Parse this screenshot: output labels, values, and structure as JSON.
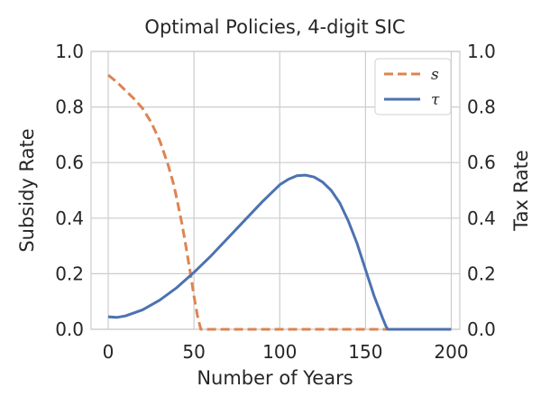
{
  "chart_data": {
    "type": "line",
    "title": "Optimal Policies, 4-digit SIC",
    "xlabel": "Number of Years",
    "ylabel_left": "Subsidy Rate",
    "ylabel_right": "Tax Rate",
    "xlim": [
      -10,
      205
    ],
    "ylim_left": [
      0,
      1
    ],
    "ylim_right": [
      0,
      1
    ],
    "x_ticks": [
      0,
      50,
      100,
      150,
      200
    ],
    "x_tick_labels": [
      "0",
      "50",
      "100",
      "150",
      "200"
    ],
    "y_ticks": [
      0,
      0.2,
      0.4,
      0.6,
      0.8,
      1.0
    ],
    "y_tick_labels_left": [
      "0.0",
      "0.2",
      "0.4",
      "0.6",
      "0.8",
      "1.0"
    ],
    "y_tick_labels_right": [
      "0.0",
      "0.2",
      "0.4",
      "0.6",
      "0.8",
      "1.0"
    ],
    "grid": true,
    "legend_position": "top-right",
    "series": [
      {
        "name": "s",
        "axis": "left",
        "style": "dashed",
        "color": "#dd8452",
        "x": [
          0,
          5,
          10,
          15,
          20,
          25,
          30,
          35,
          38,
          40,
          43,
          45,
          48,
          50,
          52,
          54,
          60,
          80,
          100,
          120,
          140,
          160,
          180,
          200
        ],
        "y": [
          0.915,
          0.89,
          0.86,
          0.83,
          0.795,
          0.745,
          0.68,
          0.59,
          0.525,
          0.47,
          0.38,
          0.31,
          0.2,
          0.12,
          0.05,
          0.0,
          0.0,
          0.0,
          0.0,
          0.0,
          0.0,
          0.0,
          0.0,
          0.0
        ]
      },
      {
        "name": "τ",
        "axis": "right",
        "style": "solid",
        "color": "#4c72b0",
        "x": [
          0,
          5,
          10,
          20,
          30,
          40,
          50,
          60,
          70,
          80,
          90,
          100,
          105,
          110,
          115,
          120,
          125,
          130,
          135,
          140,
          145,
          150,
          155,
          160,
          162,
          163,
          170,
          180,
          190,
          200
        ],
        "y": [
          0.045,
          0.043,
          0.048,
          0.07,
          0.105,
          0.15,
          0.205,
          0.265,
          0.33,
          0.395,
          0.46,
          0.52,
          0.54,
          0.553,
          0.555,
          0.548,
          0.53,
          0.5,
          0.455,
          0.39,
          0.31,
          0.215,
          0.12,
          0.04,
          0.01,
          0.0,
          0.0,
          0.0,
          0.0,
          0.0
        ]
      }
    ]
  },
  "colors": {
    "grid": "#cccccc",
    "text": "#262626",
    "spine": "#cccccc"
  }
}
